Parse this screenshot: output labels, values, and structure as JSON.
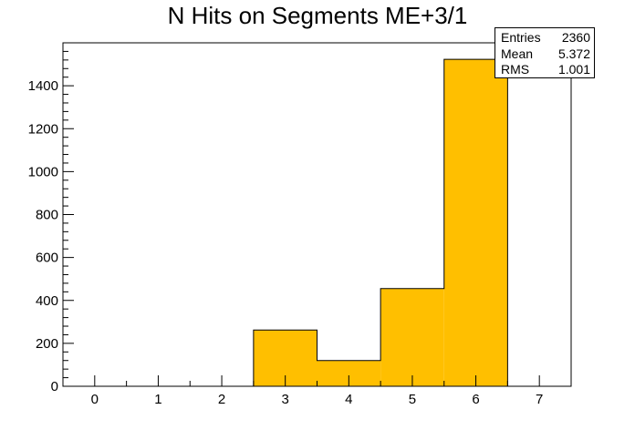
{
  "chart_data": {
    "type": "bar",
    "title": "N Hits on Segments ME+3/1",
    "xlabel": "",
    "ylabel": "",
    "xlim": [
      -0.5,
      7.5
    ],
    "ylim": [
      0,
      1600
    ],
    "x_ticks": [
      0,
      1,
      2,
      3,
      4,
      5,
      6,
      7
    ],
    "y_ticks": [
      0,
      200,
      400,
      600,
      800,
      1000,
      1200,
      1400
    ],
    "bins": [
      {
        "low": 2.5,
        "high": 3.5,
        "value": 262
      },
      {
        "low": 3.5,
        "high": 4.5,
        "value": 120
      },
      {
        "low": 4.5,
        "high": 5.5,
        "value": 455
      },
      {
        "low": 5.5,
        "high": 6.5,
        "value": 1523
      }
    ],
    "fill_color": "#ffbf00",
    "stats": [
      {
        "label": "Entries",
        "value": "2360"
      },
      {
        "label": "Mean",
        "value": "5.372"
      },
      {
        "label": "RMS",
        "value": "1.001"
      }
    ]
  }
}
